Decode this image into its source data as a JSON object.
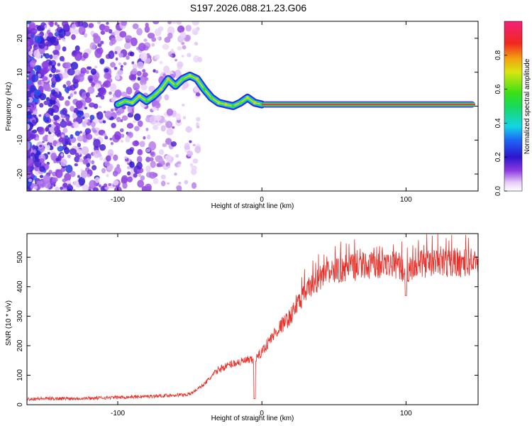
{
  "figure": {
    "title": "S197.2026.088.21.23.G06"
  },
  "chart_data": [
    {
      "type": "heatmap",
      "name": "spectrogram",
      "xlabel": "Height of straight line (km)",
      "ylabel": "Frequency (Hz)",
      "xlim": [
        -163,
        150
      ],
      "ylim": [
        -25,
        25
      ],
      "xticks": [
        -100,
        0,
        100
      ],
      "yticks": [
        -20,
        -10,
        0,
        10,
        20
      ],
      "grid": false,
      "colorbar": {
        "label": "Normalized spectral amplitude",
        "range": [
          0,
          1
        ],
        "ticks": [
          "0.0",
          "0.2",
          "0.4",
          "0.6",
          "0.8"
        ],
        "tick_values": [
          0,
          0.2,
          0.4,
          0.6,
          0.8
        ],
        "colormap": "white-purple-blue-cyan-green-yellow-orange-red-magenta"
      },
      "ridge": {
        "description": "dominant frequency trace",
        "x": [
          -100,
          -95,
          -90,
          -85,
          -80,
          -75,
          -70,
          -65,
          -60,
          -55,
          -50,
          -45,
          -40,
          -35,
          -30,
          -25,
          -20,
          -15,
          -10,
          -5,
          0
        ],
        "y": [
          0.5,
          1.5,
          1.0,
          3.0,
          1.5,
          3.0,
          5.0,
          8.0,
          6.0,
          8.0,
          9.0,
          8.0,
          5.0,
          2.5,
          1.0,
          0.5,
          0.0,
          1.0,
          2.5,
          1.0,
          0.5
        ],
        "flat_from_x": 0,
        "flat_to_x": 148,
        "flat_y": 0.5,
        "flat_value": 0.95
      }
    },
    {
      "type": "line",
      "name": "snr",
      "xlabel": "Height of straight line (km)",
      "ylabel": "SNR (10 * v/v)",
      "xlim": [
        -163,
        150
      ],
      "ylim": [
        0,
        580
      ],
      "xticks": [
        -100,
        0,
        100
      ],
      "yticks": [
        0,
        100,
        200,
        300,
        400,
        500
      ],
      "grid": false,
      "series": [
        {
          "name": "SNR",
          "color": "#e8312b",
          "x": [
            -163,
            -120,
            -80,
            -50,
            -40,
            -30,
            -20,
            -10,
            -5,
            0,
            10,
            20,
            30,
            40,
            50,
            60,
            80,
            95,
            100,
            105,
            120,
            150
          ],
          "y": [
            20,
            22,
            28,
            35,
            70,
            120,
            140,
            150,
            150,
            180,
            250,
            300,
            380,
            430,
            450,
            465,
            470,
            475,
            440,
            475,
            480,
            480
          ],
          "spikes": [
            {
              "x": -5,
              "y": 260
            },
            {
              "x": -5,
              "y": 20
            },
            {
              "x": 100,
              "y": 370
            }
          ]
        }
      ]
    }
  ]
}
